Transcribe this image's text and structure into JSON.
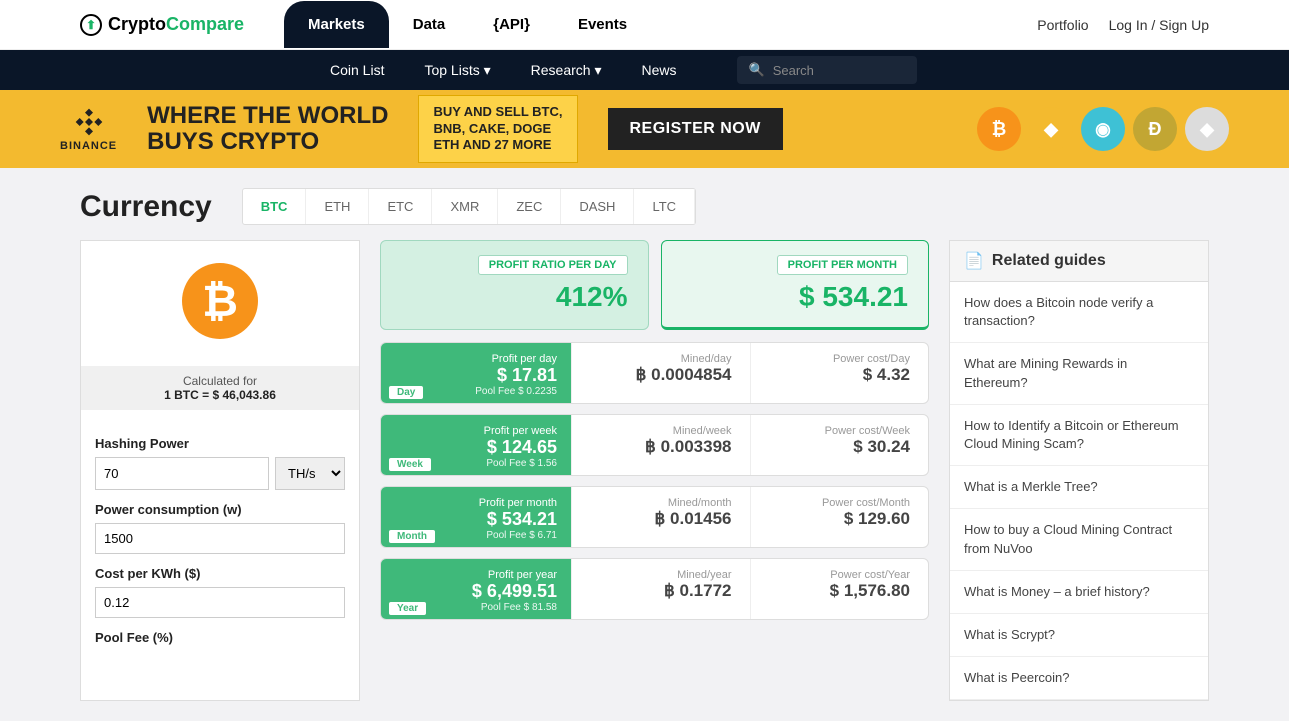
{
  "logo": {
    "part1": "Crypto",
    "part2": "Compare"
  },
  "mainnav": {
    "markets": "Markets",
    "data": "Data",
    "api": "{API}",
    "events": "Events"
  },
  "rightnav": {
    "portfolio": "Portfolio",
    "login": "Log In / Sign Up"
  },
  "subnav": {
    "coinlist": "Coin List",
    "toplists": "Top Lists ▾",
    "research": "Research ▾",
    "news": "News",
    "search_placeholder": "Search"
  },
  "banner": {
    "brand": "BINANCE",
    "headline1": "WHERE THE WORLD",
    "headline2": "BUYS CRYPTO",
    "box_l1": "BUY AND SELL BTC,",
    "box_l2": "BNB, CAKE, DOGE",
    "box_l3": "ETH AND 27 MORE",
    "cta": "REGISTER NOW",
    "coin_colors": [
      "#f7931a",
      "#f3ba2f",
      "#3ec1d5",
      "#c2a633",
      "#dcdcdc"
    ],
    "coin_glyphs": [
      "₿",
      "◆",
      "◉",
      "Ð",
      "◆"
    ]
  },
  "page": {
    "title": "Currency"
  },
  "tabs": [
    "BTC",
    "ETH",
    "ETC",
    "XMR",
    "ZEC",
    "DASH",
    "LTC"
  ],
  "left": {
    "calc_label": "Calculated for",
    "rate": "1 BTC = $ 46,043.86",
    "hashing_label": "Hashing Power",
    "hashing_value": "70",
    "hashing_unit": "TH/s",
    "power_label": "Power consumption (w)",
    "power_value": "1500",
    "cost_label": "Cost per KWh ($)",
    "cost_value": "0.12",
    "poolfee_label": "Pool Fee (%)"
  },
  "summary": {
    "ratio_label": "PROFIT RATIO PER DAY",
    "ratio_value": "412%",
    "month_label": "PROFIT PER MONTH",
    "month_value": "$ 534.21"
  },
  "rows": [
    {
      "tag": "Day",
      "pt": "Profit per day",
      "pv": "$ 17.81",
      "pf": "Pool Fee $ 0.2235",
      "mt": "Mined/day",
      "mv": "฿ 0.0004854",
      "ct": "Power cost/Day",
      "cv": "$ 4.32"
    },
    {
      "tag": "Week",
      "pt": "Profit per week",
      "pv": "$ 124.65",
      "pf": "Pool Fee $ 1.56",
      "mt": "Mined/week",
      "mv": "฿ 0.003398",
      "ct": "Power cost/Week",
      "cv": "$ 30.24"
    },
    {
      "tag": "Month",
      "pt": "Profit per month",
      "pv": "$ 534.21",
      "pf": "Pool Fee $ 6.71",
      "mt": "Mined/month",
      "mv": "฿ 0.01456",
      "ct": "Power cost/Month",
      "cv": "$ 129.60"
    },
    {
      "tag": "Year",
      "pt": "Profit per year",
      "pv": "$ 6,499.51",
      "pf": "Pool Fee $ 81.58",
      "mt": "Mined/year",
      "mv": "฿ 0.1772",
      "ct": "Power cost/Year",
      "cv": "$ 1,576.80"
    }
  ],
  "related": {
    "title": "Related guides",
    "items": [
      "How does a Bitcoin node verify a transaction?",
      "What are Mining Rewards in Ethereum?",
      "How to Identify a Bitcoin or Ethereum Cloud Mining Scam?",
      "What is a Merkle Tree?",
      "How to buy a Cloud Mining Contract from NuVoo",
      "What is Money – a brief history?",
      "What is Scrypt?",
      "What is Peercoin?"
    ]
  }
}
